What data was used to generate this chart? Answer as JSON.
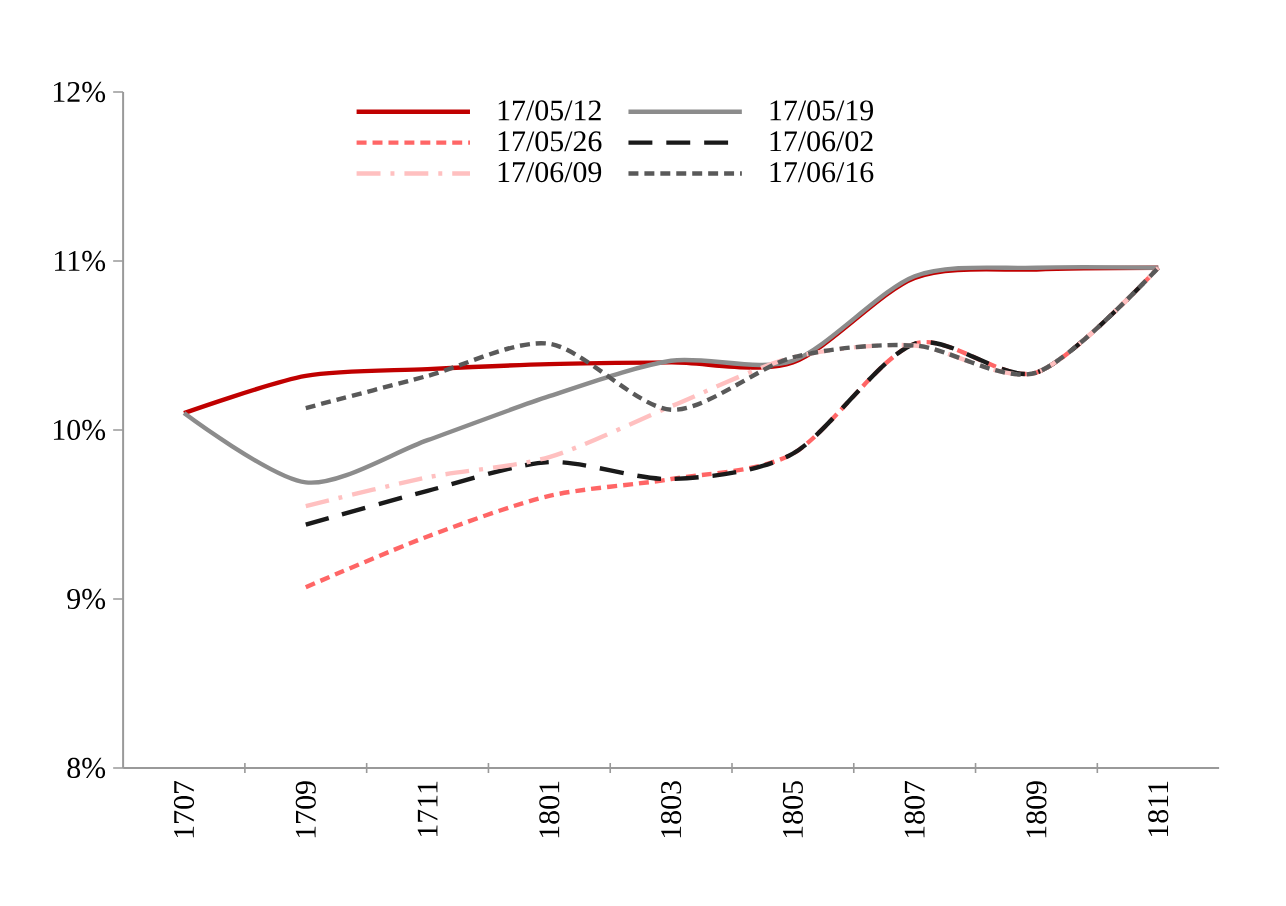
{
  "chart_data": {
    "type": "line",
    "categories": [
      "1707",
      "1709",
      "1711",
      "1801",
      "1803",
      "1805",
      "1807",
      "1809",
      "1811"
    ],
    "ylim": [
      8,
      12
    ],
    "yticks": [
      {
        "value": 8,
        "label": "8%"
      },
      {
        "value": 9,
        "label": "9%"
      },
      {
        "value": 10,
        "label": "10%"
      },
      {
        "value": 11,
        "label": "11%"
      },
      {
        "value": 12,
        "label": "12%"
      }
    ],
    "grid": false,
    "legend": "top",
    "marker": "none",
    "series": [
      {
        "name": "17/05/12",
        "color": "#c00000",
        "line_style": "solid",
        "values": [
          10.1,
          10.32,
          10.36,
          10.39,
          10.4,
          10.4,
          10.9,
          10.95,
          10.96
        ]
      },
      {
        "name": "17/05/19",
        "color": "#8c8c8c",
        "line_style": "solid",
        "values": [
          10.1,
          9.69,
          9.94,
          10.2,
          10.41,
          10.41,
          10.91,
          10.96,
          10.96
        ]
      },
      {
        "name": "17/05/26",
        "color": "#ff6666",
        "line_style": "dashed",
        "values": [
          null,
          9.07,
          9.37,
          9.61,
          9.71,
          9.86,
          10.51,
          10.34,
          10.96
        ]
      },
      {
        "name": "17/06/02",
        "color": "#1a1a1a",
        "line_style": "long dashed",
        "values": [
          null,
          9.44,
          9.64,
          9.81,
          9.71,
          9.86,
          10.51,
          10.34,
          10.96
        ]
      },
      {
        "name": "17/06/09",
        "color": "#ffc0c0",
        "line_style": "dash dot",
        "values": [
          null,
          9.55,
          9.72,
          9.84,
          10.14,
          10.43,
          10.5,
          10.34,
          10.96
        ]
      },
      {
        "name": "17/06/16",
        "color": "#595959",
        "line_style": "dashed",
        "values": [
          null,
          10.13,
          10.32,
          10.51,
          10.12,
          10.43,
          10.5,
          10.34,
          10.96
        ]
      }
    ]
  }
}
